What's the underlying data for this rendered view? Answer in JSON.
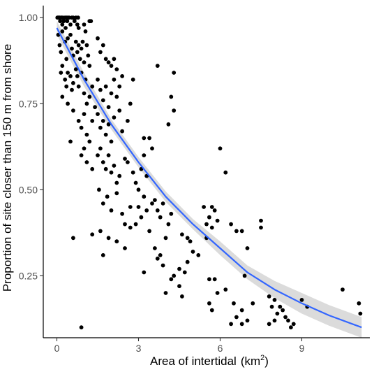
{
  "chart_data": {
    "type": "scatter",
    "title": "",
    "xlabel": "Area of intertidal",
    "xlabel_unit": "(km",
    "xlabel_unit_exp": "2",
    "xlabel_unit_close": ")",
    "ylabel": "Proportion of site closer than 150 m from shore",
    "xlim": [
      -0.5,
      11.5
    ],
    "ylim": [
      0.07,
      1.035
    ],
    "x_ticks": [
      0,
      3,
      6,
      9
    ],
    "y_ticks": [
      0.25,
      0.5,
      0.75,
      1.0
    ],
    "x_tick_labels": [
      "0",
      "3",
      "6",
      "9"
    ],
    "y_tick_labels": [
      "0.25",
      "0.50",
      "0.75",
      "1.00"
    ],
    "grid": false,
    "legend": "none",
    "point_color": "#000000",
    "fit_color": "#3366ff",
    "band_color": "#bebebe",
    "fit": {
      "type": "exponential",
      "x": [
        0,
        1,
        2,
        3,
        4,
        5,
        6,
        7,
        8,
        9,
        10,
        11.2
      ],
      "y": [
        0.97,
        0.82,
        0.69,
        0.58,
        0.48,
        0.4,
        0.33,
        0.26,
        0.21,
        0.17,
        0.135,
        0.1
      ],
      "lower": [
        0.95,
        0.8,
        0.675,
        0.565,
        0.465,
        0.385,
        0.31,
        0.24,
        0.185,
        0.14,
        0.105,
        0.07
      ],
      "upper": [
        0.99,
        0.84,
        0.705,
        0.595,
        0.495,
        0.415,
        0.35,
        0.28,
        0.235,
        0.2,
        0.165,
        0.13
      ]
    },
    "points": [
      [
        0.02,
        1.0
      ],
      [
        0.05,
        1.0
      ],
      [
        0.08,
        1.0
      ],
      [
        0.1,
        1.0
      ],
      [
        0.12,
        0.99
      ],
      [
        0.15,
        1.0
      ],
      [
        0.18,
        1.0
      ],
      [
        0.2,
        0.98
      ],
      [
        0.22,
        1.0
      ],
      [
        0.25,
        0.99
      ],
      [
        0.3,
        1.0
      ],
      [
        0.32,
        0.97
      ],
      [
        0.35,
        1.0
      ],
      [
        0.38,
        0.99
      ],
      [
        0.4,
        1.0
      ],
      [
        0.45,
        1.0
      ],
      [
        0.5,
        0.98
      ],
      [
        0.55,
        1.0
      ],
      [
        0.6,
        1.0
      ],
      [
        0.65,
        0.99
      ],
      [
        0.7,
        1.0
      ],
      [
        0.75,
        0.98
      ],
      [
        0.78,
        1.0
      ],
      [
        0.8,
        0.97
      ],
      [
        1.0,
        0.98
      ],
      [
        1.05,
        0.96
      ],
      [
        1.2,
        0.99
      ],
      [
        1.25,
        0.99
      ],
      [
        0.05,
        0.95
      ],
      [
        0.1,
        0.92
      ],
      [
        0.15,
        0.9
      ],
      [
        0.2,
        0.96
      ],
      [
        0.3,
        0.93
      ],
      [
        0.35,
        0.88
      ],
      [
        0.4,
        0.94
      ],
      [
        0.5,
        0.95
      ],
      [
        0.55,
        0.91
      ],
      [
        0.6,
        0.89
      ],
      [
        0.7,
        0.93
      ],
      [
        0.75,
        0.9
      ],
      [
        0.8,
        0.92
      ],
      [
        0.85,
        0.88
      ],
      [
        0.9,
        0.91
      ],
      [
        0.95,
        0.93
      ],
      [
        1.0,
        0.87
      ],
      [
        1.1,
        0.92
      ],
      [
        1.15,
        0.89
      ],
      [
        1.2,
        0.86
      ],
      [
        0.15,
        0.84
      ],
      [
        0.2,
        0.86
      ],
      [
        0.3,
        0.82
      ],
      [
        0.35,
        0.8
      ],
      [
        0.4,
        0.84
      ],
      [
        0.5,
        0.83
      ],
      [
        0.55,
        0.79
      ],
      [
        0.6,
        0.81
      ],
      [
        0.7,
        0.85
      ],
      [
        0.75,
        0.83
      ],
      [
        0.8,
        0.8
      ],
      [
        0.9,
        0.84
      ],
      [
        1.0,
        0.78
      ],
      [
        1.05,
        0.82
      ],
      [
        1.1,
        0.75
      ],
      [
        1.2,
        0.77
      ],
      [
        1.3,
        0.8
      ],
      [
        0.2,
        0.77
      ],
      [
        0.4,
        0.75
      ],
      [
        0.6,
        0.73
      ],
      [
        0.8,
        0.7
      ],
      [
        0.9,
        0.68
      ],
      [
        1.0,
        0.72
      ],
      [
        1.1,
        0.66
      ],
      [
        1.3,
        0.7
      ],
      [
        1.4,
        0.74
      ],
      [
        0.5,
        0.64
      ],
      [
        0.9,
        0.6
      ],
      [
        1.0,
        0.62
      ],
      [
        1.1,
        0.58
      ],
      [
        1.2,
        0.64
      ],
      [
        1.3,
        0.56
      ],
      [
        1.5,
        0.94
      ],
      [
        1.6,
        0.9
      ],
      [
        1.7,
        0.92
      ],
      [
        1.8,
        0.88
      ],
      [
        1.9,
        0.87
      ],
      [
        2.0,
        0.86
      ],
      [
        2.1,
        0.88
      ],
      [
        2.2,
        0.85
      ],
      [
        2.3,
        0.8
      ],
      [
        2.4,
        0.83
      ],
      [
        1.5,
        0.82
      ],
      [
        1.6,
        0.79
      ],
      [
        1.7,
        0.76
      ],
      [
        1.8,
        0.8
      ],
      [
        1.9,
        0.74
      ],
      [
        2.0,
        0.78
      ],
      [
        2.1,
        0.82
      ],
      [
        2.2,
        0.77
      ],
      [
        1.5,
        0.72
      ],
      [
        1.6,
        0.68
      ],
      [
        1.7,
        0.7
      ],
      [
        1.8,
        0.66
      ],
      [
        1.9,
        0.69
      ],
      [
        2.0,
        0.64
      ],
      [
        2.1,
        0.71
      ],
      [
        2.3,
        0.73
      ],
      [
        2.4,
        0.67
      ],
      [
        2.6,
        0.7
      ],
      [
        1.5,
        0.6
      ],
      [
        1.6,
        0.62
      ],
      [
        1.7,
        0.58
      ],
      [
        1.8,
        0.56
      ],
      [
        1.9,
        0.6
      ],
      [
        2.0,
        0.55
      ],
      [
        2.1,
        0.57
      ],
      [
        2.2,
        0.52
      ],
      [
        2.3,
        0.54
      ],
      [
        2.5,
        0.59
      ],
      [
        1.55,
        0.5
      ],
      [
        1.7,
        0.46
      ],
      [
        1.85,
        0.48
      ],
      [
        2.0,
        0.44
      ],
      [
        2.2,
        0.49
      ],
      [
        2.4,
        0.43
      ],
      [
        2.5,
        0.4
      ],
      [
        2.7,
        0.45
      ],
      [
        1.6,
        0.38
      ],
      [
        1.9,
        0.36
      ],
      [
        2.2,
        0.35
      ],
      [
        2.5,
        0.33
      ],
      [
        2.7,
        0.39
      ],
      [
        2.9,
        0.4
      ],
      [
        1.7,
        0.31
      ],
      [
        1.3,
        0.37
      ],
      [
        0.6,
        0.36
      ],
      [
        0.9,
        0.1
      ],
      [
        2.6,
        0.58
      ],
      [
        2.8,
        0.55
      ],
      [
        2.9,
        0.52
      ],
      [
        3.0,
        0.5
      ],
      [
        3.1,
        0.56
      ],
      [
        3.2,
        0.6
      ],
      [
        3.3,
        0.54
      ],
      [
        3.4,
        0.65
      ],
      [
        3.5,
        0.62
      ],
      [
        3.0,
        0.45
      ],
      [
        3.1,
        0.42
      ],
      [
        3.2,
        0.48
      ],
      [
        3.3,
        0.44
      ],
      [
        3.4,
        0.38
      ],
      [
        3.5,
        0.46
      ],
      [
        3.6,
        0.47
      ],
      [
        3.7,
        0.44
      ],
      [
        3.8,
        0.42
      ],
      [
        3.9,
        0.46
      ],
      [
        3.2,
        0.65
      ],
      [
        2.7,
        0.75
      ],
      [
        2.8,
        0.82
      ],
      [
        3.7,
        0.86
      ],
      [
        4.3,
        0.84
      ],
      [
        4.2,
        0.77
      ],
      [
        4.3,
        0.73
      ],
      [
        4.1,
        0.69
      ],
      [
        3.6,
        0.33
      ],
      [
        3.7,
        0.3
      ],
      [
        3.8,
        0.31
      ],
      [
        3.9,
        0.28
      ],
      [
        4.0,
        0.36
      ],
      [
        4.1,
        0.4
      ],
      [
        4.2,
        0.43
      ],
      [
        3.2,
        0.26
      ],
      [
        4.0,
        0.2
      ],
      [
        4.2,
        0.24
      ],
      [
        4.3,
        0.25
      ],
      [
        4.5,
        0.22
      ],
      [
        4.6,
        0.19
      ],
      [
        4.5,
        0.27
      ],
      [
        4.7,
        0.26
      ],
      [
        4.8,
        0.29
      ],
      [
        4.9,
        0.35
      ],
      [
        5.0,
        0.32
      ],
      [
        4.6,
        0.37
      ],
      [
        4.8,
        0.36
      ],
      [
        5.2,
        0.31
      ],
      [
        5.5,
        0.36
      ],
      [
        5.4,
        0.45
      ],
      [
        5.5,
        0.4
      ],
      [
        5.6,
        0.42
      ],
      [
        5.7,
        0.45
      ],
      [
        5.8,
        0.44
      ],
      [
        5.9,
        0.41
      ],
      [
        5.7,
        0.39
      ],
      [
        6.0,
        0.62
      ],
      [
        6.2,
        0.55
      ],
      [
        6.4,
        0.4
      ],
      [
        6.6,
        0.38
      ],
      [
        6.8,
        0.38
      ],
      [
        7.0,
        0.33
      ],
      [
        5.6,
        0.24
      ],
      [
        5.8,
        0.24
      ],
      [
        5.9,
        0.2
      ],
      [
        6.2,
        0.21
      ],
      [
        5.6,
        0.17
      ],
      [
        5.7,
        0.15
      ],
      [
        6.5,
        0.17
      ],
      [
        6.8,
        0.15
      ],
      [
        6.4,
        0.11
      ],
      [
        6.6,
        0.13
      ],
      [
        6.8,
        0.11
      ],
      [
        7.0,
        0.12
      ],
      [
        6.9,
        0.25
      ],
      [
        7.2,
        0.17
      ],
      [
        7.5,
        0.41
      ],
      [
        7.5,
        0.39
      ],
      [
        7.8,
        0.19
      ],
      [
        7.9,
        0.16
      ],
      [
        8.0,
        0.18
      ],
      [
        8.1,
        0.14
      ],
      [
        8.2,
        0.16
      ],
      [
        8.3,
        0.15
      ],
      [
        8.4,
        0.13
      ],
      [
        8.5,
        0.12
      ],
      [
        8.6,
        0.1
      ],
      [
        8.7,
        0.11
      ],
      [
        9.0,
        0.18
      ],
      [
        9.2,
        0.16
      ],
      [
        7.8,
        0.11
      ],
      [
        8.0,
        0.12
      ],
      [
        10.5,
        0.21
      ],
      [
        11.1,
        0.17
      ],
      [
        11.15,
        0.14
      ]
    ]
  }
}
